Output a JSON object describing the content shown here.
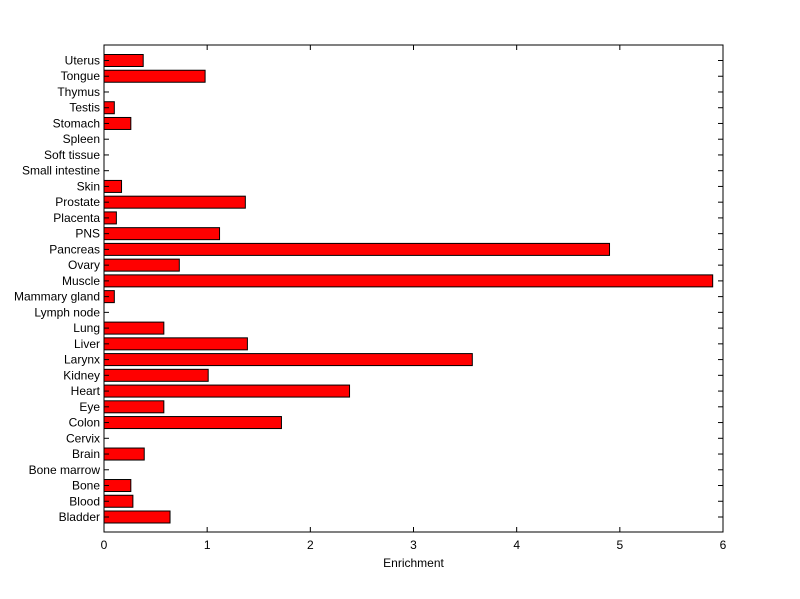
{
  "chart_data": {
    "type": "bar",
    "orientation": "horizontal",
    "title": "",
    "xlabel": "Enrichment",
    "ylabel": "",
    "xlim": [
      0,
      6
    ],
    "xticks": [
      0,
      1,
      2,
      3,
      4,
      5,
      6
    ],
    "grid": false,
    "bar_color": "#ff0000",
    "edge_color": "#000000",
    "categories": [
      "Bladder",
      "Blood",
      "Bone",
      "Bone marrow",
      "Brain",
      "Cervix",
      "Colon",
      "Eye",
      "Heart",
      "Kidney",
      "Larynx",
      "Liver",
      "Lung",
      "Lymph node",
      "Mammary gland",
      "Muscle",
      "Ovary",
      "Pancreas",
      "PNS",
      "Placenta",
      "Prostate",
      "Skin",
      "Small intestine",
      "Soft tissue",
      "Spleen",
      "Stomach",
      "Testis",
      "Thymus",
      "Tongue",
      "Uterus"
    ],
    "values": [
      0.64,
      0.28,
      0.26,
      0,
      0.39,
      0,
      1.72,
      0.58,
      2.38,
      1.01,
      3.57,
      1.39,
      0.58,
      0,
      0.1,
      5.9,
      0.73,
      4.9,
      1.12,
      0.12,
      1.37,
      0.17,
      0,
      0,
      0,
      0.26,
      0.1,
      0,
      0.98,
      0.38
    ]
  }
}
